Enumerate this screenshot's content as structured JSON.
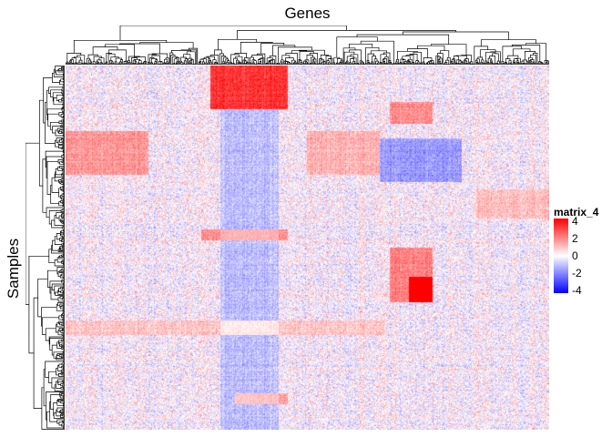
{
  "chart_data": {
    "type": "heatmap",
    "title": "",
    "column_title": "Genes",
    "row_title": "Samples",
    "n_rows": 400,
    "n_cols": 530,
    "value_range": [
      -4,
      4
    ],
    "colormap": {
      "low": "#0000ff",
      "mid": "#ffffff",
      "high": "#ff0000"
    },
    "row_dendrogram": true,
    "column_dendrogram": true,
    "legend": {
      "title": "matrix_4",
      "ticks": [
        "4",
        "2",
        "0",
        "-2",
        "-4"
      ],
      "tick_values": [
        4,
        2,
        0,
        -2,
        -4
      ],
      "placement": "right"
    },
    "block_patterns": [
      {
        "rows": [
          0,
          0.12
        ],
        "cols": [
          0.3,
          0.46
        ],
        "value": 3.2
      },
      {
        "rows": [
          0.12,
          1.0
        ],
        "cols": [
          0.32,
          0.44
        ],
        "value": -1.0
      },
      {
        "rows": [
          0.18,
          0.3
        ],
        "cols": [
          0.0,
          0.17
        ],
        "value": 1.6
      },
      {
        "rows": [
          0.18,
          0.3
        ],
        "cols": [
          0.5,
          0.65
        ],
        "value": 1.2
      },
      {
        "rows": [
          0.2,
          0.32
        ],
        "cols": [
          0.65,
          0.82
        ],
        "value": -1.6
      },
      {
        "rows": [
          0.5,
          0.65
        ],
        "cols": [
          0.67,
          0.76
        ],
        "value": 2.0
      },
      {
        "rows": [
          0.58,
          0.65
        ],
        "cols": [
          0.71,
          0.76
        ],
        "value": 3.2
      },
      {
        "rows": [
          0.1,
          0.16
        ],
        "cols": [
          0.67,
          0.76
        ],
        "value": 1.8
      },
      {
        "rows": [
          0.45,
          0.48
        ],
        "cols": [
          0.28,
          0.46
        ],
        "value": 1.8
      },
      {
        "rows": [
          0.9,
          0.93
        ],
        "cols": [
          0.35,
          0.46
        ],
        "value": 1.5
      },
      {
        "rows": [
          0.7,
          0.74
        ],
        "cols": [
          0.0,
          0.66
        ],
        "value": 0.9
      },
      {
        "rows": [
          0.34,
          0.42
        ],
        "cols": [
          0.85,
          1.0
        ],
        "value": 1.0
      }
    ]
  }
}
